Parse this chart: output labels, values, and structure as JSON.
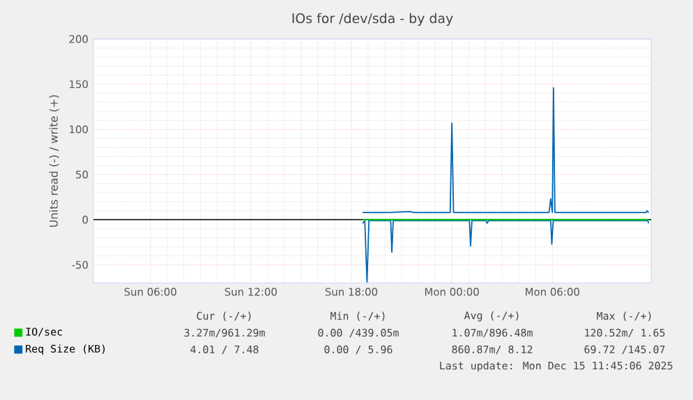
{
  "chart_data": {
    "type": "line",
    "title": "IOs for /dev/sda - by day",
    "ylabel": "Units read (-) / write (+)",
    "xlim": [
      "2025-12-14T02:36",
      "2025-12-15T11:54"
    ],
    "ylim": [
      -70,
      200
    ],
    "xticks": [
      {
        "value": "2025-12-14T06:00",
        "label": "Sun 06:00"
      },
      {
        "value": "2025-12-14T12:00",
        "label": "Sun 12:00"
      },
      {
        "value": "2025-12-14T18:00",
        "label": "Sun 18:00"
      },
      {
        "value": "2025-12-15T00:00",
        "label": "Mon 00:00"
      },
      {
        "value": "2025-12-15T06:00",
        "label": "Mon 06:00"
      }
    ],
    "yticks": [
      -50,
      0,
      50,
      100,
      150,
      200
    ],
    "grid": true,
    "legend": "bottom",
    "marker": "none",
    "line_style": "solid",
    "ref_lines": [
      {
        "axis": "y",
        "value": 0,
        "color": "#000000"
      }
    ],
    "series": [
      {
        "name": "IO/sec",
        "color": "#00cc00",
        "x": [
          "2025-12-14T18:40",
          "2025-12-15T11:45"
        ],
        "values": [
          0,
          0
        ]
      },
      {
        "name": "Req Size (KB)",
        "color": "#0066b3",
        "x": [
          "2025-12-14T18:40",
          "2025-12-14T18:54",
          "2025-12-14T20:18",
          "2025-12-14T21:30",
          "2025-12-14T21:42",
          "2025-12-14T23:54",
          "2025-12-15T00:00",
          "2025-12-15T00:06",
          "2025-12-15T05:48",
          "2025-12-15T05:54",
          "2025-12-15T06:00",
          "2025-12-15T06:04",
          "2025-12-15T06:09",
          "2025-12-15T11:36",
          "2025-12-15T11:39",
          "2025-12-15T11:45"
        ],
        "values": [
          8,
          8,
          8,
          9,
          8,
          8,
          107,
          8,
          8,
          23,
          8,
          146,
          8,
          8,
          10,
          8
        ]
      },
      {
        "color": "#0066b3",
        "x": [
          "2025-12-14T18:40",
          "2025-12-14T18:48",
          "2025-12-14T18:56",
          "2025-12-14T19:03",
          "2025-12-14T20:21",
          "2025-12-14T20:25",
          "2025-12-14T20:30",
          "2025-12-15T01:03",
          "2025-12-15T01:07",
          "2025-12-15T01:12",
          "2025-12-15T02:03",
          "2025-12-15T02:06",
          "2025-12-15T02:12",
          "2025-12-15T05:54",
          "2025-12-15T05:58",
          "2025-12-15T06:03",
          "2025-12-15T11:42",
          "2025-12-15T11:45"
        ],
        "values": [
          -4,
          -1,
          -69,
          -1,
          -1,
          -36,
          -1,
          -1,
          -29,
          -1,
          -1,
          -4,
          -1,
          -1,
          -27,
          -1,
          -1,
          -4
        ]
      }
    ],
    "annotations": [
      "Cur (-/+)",
      "Min (-/+)",
      "Avg (-/+)",
      "Max (-/+)",
      "3.27m/961.29m",
      "0.00 /439.05m",
      "1.07m/896.48m",
      "120.52m/ 1.65",
      "4.01 / 7.48",
      "0.00 / 5.96",
      "860.87m/ 8.12",
      "69.72 /145.07",
      "Last update: Mon Dec 15 11:45:06 2025"
    ]
  }
}
